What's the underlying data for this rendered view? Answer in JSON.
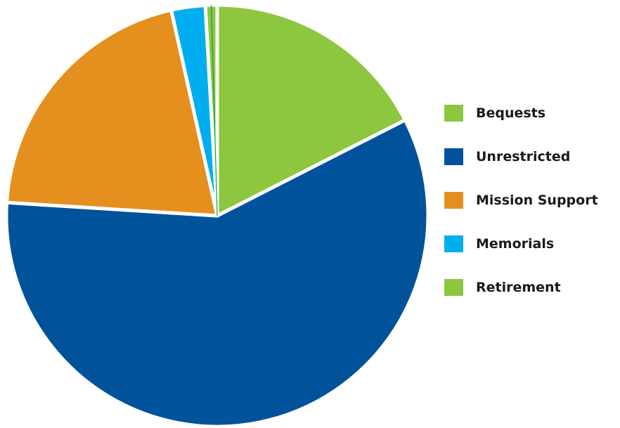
{
  "chart_data": {
    "type": "pie",
    "title": "",
    "categories": [
      "Bequests",
      "Unrestricted",
      "Mission Support",
      "Memorials",
      "Retirement"
    ],
    "values": [
      17.5,
      58.5,
      20.5,
      2.6,
      0.9
    ],
    "unit": "%",
    "colors": [
      "#8dc63f",
      "#00529b",
      "#e5901e",
      "#00aeef",
      "#8dc63f"
    ],
    "start_angle_deg": 0,
    "direction": "clockwise",
    "legend_position": "right"
  },
  "legend": {
    "items": [
      {
        "label": "Bequests",
        "color": "#8dc63f"
      },
      {
        "label": "Unrestricted",
        "color": "#00529b"
      },
      {
        "label": "Mission Support",
        "color": "#e5901e"
      },
      {
        "label": "Memorials",
        "color": "#00aeef"
      },
      {
        "label": "Retirement",
        "color": "#8dc63f"
      }
    ]
  },
  "colors": {
    "background": "#ffffff",
    "separator": "#ffffff",
    "retirement_edge": "#00a651"
  }
}
